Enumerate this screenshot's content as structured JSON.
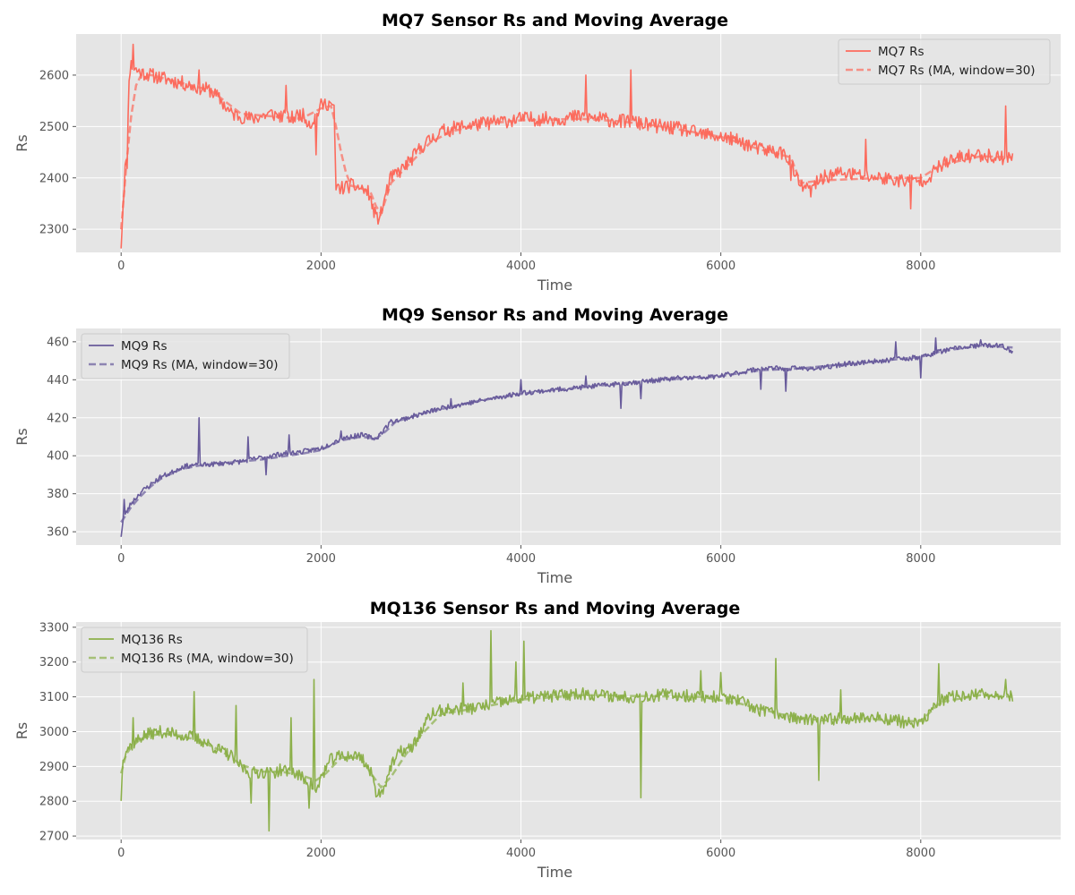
{
  "chart_data": [
    {
      "type": "line",
      "title": "MQ7 Sensor Rs and Moving Average",
      "xlabel": "Time",
      "ylabel": "Rs",
      "xlim": [
        -450,
        9400
      ],
      "ylim": [
        2255,
        2680
      ],
      "xticks": [
        0,
        2000,
        4000,
        6000,
        8000
      ],
      "yticks": [
        2300,
        2400,
        2500,
        2600
      ],
      "grid": true,
      "legend_position": "top-right",
      "color": "#fc6b5d",
      "noise": 14,
      "seed": 11,
      "spikes": [
        [
          120,
          2660
        ],
        [
          780,
          2610
        ],
        [
          1650,
          2580
        ],
        [
          1950,
          2445
        ],
        [
          4650,
          2600
        ],
        [
          5100,
          2610
        ],
        [
          6700,
          2395
        ],
        [
          7450,
          2475
        ],
        [
          7900,
          2340
        ],
        [
          8850,
          2540
        ]
      ],
      "series": [
        {
          "name": "MQ7 Rs",
          "style": "solid",
          "x": [
            0,
            20,
            40,
            60,
            80,
            100,
            150,
            200,
            300,
            400,
            500,
            600,
            700,
            800,
            900,
            1000,
            1100,
            1200,
            1300,
            1400,
            1500,
            1600,
            1700,
            1800,
            1900,
            2000,
            2050,
            2100,
            2130,
            2150,
            2200,
            2300,
            2400,
            2480,
            2520,
            2560,
            2600,
            2650,
            2700,
            2800,
            2900,
            3000,
            3100,
            3200,
            3300,
            3400,
            3600,
            3800,
            4000,
            4200,
            4400,
            4600,
            4800,
            5000,
            5100,
            5200,
            5400,
            5600,
            5800,
            6000,
            6200,
            6400,
            6600,
            6700,
            6750,
            6800,
            6900,
            7000,
            7200,
            7400,
            7600,
            7800,
            8000,
            8100,
            8200,
            8400,
            8600,
            8800,
            8920
          ],
          "y": [
            2270,
            2350,
            2420,
            2430,
            2600,
            2620,
            2610,
            2605,
            2600,
            2595,
            2590,
            2585,
            2580,
            2575,
            2570,
            2550,
            2525,
            2520,
            2515,
            2520,
            2525,
            2520,
            2515,
            2525,
            2505,
            2540,
            2545,
            2545,
            2530,
            2380,
            2380,
            2385,
            2380,
            2370,
            2340,
            2320,
            2330,
            2370,
            2400,
            2415,
            2435,
            2460,
            2475,
            2490,
            2495,
            2500,
            2505,
            2510,
            2515,
            2515,
            2515,
            2520,
            2515,
            2510,
            2510,
            2505,
            2500,
            2495,
            2485,
            2480,
            2470,
            2455,
            2450,
            2435,
            2400,
            2385,
            2375,
            2400,
            2410,
            2405,
            2400,
            2395,
            2395,
            2405,
            2425,
            2440,
            2445,
            2440,
            2440
          ]
        },
        {
          "name": "MQ7 Rs (MA, window=30)",
          "style": "dashed",
          "x": [
            0,
            50,
            100,
            150,
            200,
            300,
            500,
            700,
            900,
            1000,
            1200,
            1500,
            1800,
            2000,
            2100,
            2150,
            2200,
            2250,
            2300,
            2400,
            2500,
            2550,
            2600,
            2700,
            2900,
            3100,
            3300,
            3600,
            4000,
            4600,
            5000,
            5400,
            6000,
            6400,
            6700,
            6800,
            7000,
            7600,
            8000,
            8200,
            8600,
            8920
          ],
          "y": [
            2300,
            2420,
            2520,
            2580,
            2600,
            2600,
            2590,
            2580,
            2570,
            2555,
            2525,
            2520,
            2515,
            2535,
            2540,
            2500,
            2450,
            2410,
            2385,
            2380,
            2370,
            2345,
            2330,
            2390,
            2430,
            2470,
            2490,
            2505,
            2512,
            2515,
            2510,
            2500,
            2480,
            2455,
            2440,
            2390,
            2395,
            2400,
            2400,
            2425,
            2442,
            2440
          ]
        }
      ]
    },
    {
      "type": "line",
      "title": "MQ9 Sensor Rs and Moving Average",
      "xlabel": "Time",
      "ylabel": "Rs",
      "xlim": [
        -450,
        9400
      ],
      "ylim": [
        353,
        467
      ],
      "xticks": [
        0,
        2000,
        4000,
        6000,
        8000
      ],
      "yticks": [
        360,
        380,
        400,
        420,
        440,
        460
      ],
      "grid": true,
      "legend_position": "top-left",
      "color": "#685b9b",
      "noise": 1.3,
      "seed": 23,
      "spikes": [
        [
          25,
          377
        ],
        [
          780,
          420
        ],
        [
          1270,
          410
        ],
        [
          1680,
          411
        ],
        [
          1450,
          390
        ],
        [
          2200,
          413
        ],
        [
          3300,
          430
        ],
        [
          4000,
          440
        ],
        [
          4650,
          442
        ],
        [
          5000,
          425
        ],
        [
          5200,
          430
        ],
        [
          6400,
          435
        ],
        [
          6650,
          434
        ],
        [
          7750,
          460
        ],
        [
          8000,
          441
        ],
        [
          8150,
          462
        ],
        [
          8600,
          461
        ]
      ],
      "series": [
        {
          "name": "MQ9 Rs",
          "style": "solid",
          "x": [
            0,
            20,
            50,
            100,
            200,
            300,
            400,
            500,
            600,
            700,
            800,
            1000,
            1200,
            1400,
            1600,
            1800,
            2000,
            2200,
            2400,
            2550,
            2600,
            2700,
            2800,
            3000,
            3200,
            3400,
            3600,
            3800,
            4000,
            4200,
            4400,
            4600,
            4800,
            5000,
            5200,
            5400,
            5600,
            5800,
            6000,
            6200,
            6400,
            6600,
            6800,
            7000,
            7200,
            7400,
            7600,
            7800,
            8000,
            8200,
            8400,
            8600,
            8800,
            8920
          ],
          "y": [
            358,
            366,
            370,
            375,
            381,
            385,
            389,
            391,
            394,
            395,
            395,
            396,
            397,
            399,
            401,
            402,
            404,
            409,
            411,
            409,
            412,
            418,
            419,
            422,
            425,
            427,
            429,
            431,
            433,
            434,
            435,
            436,
            437,
            438,
            439,
            440,
            441,
            441,
            442,
            444,
            446,
            446,
            446,
            446,
            448,
            449,
            450,
            451,
            452,
            455,
            457,
            458,
            458,
            455
          ]
        },
        {
          "name": "MQ9 Rs (MA, window=30)",
          "style": "dashed",
          "x": [
            0,
            50,
            100,
            200,
            300,
            400,
            600,
            800,
            1000,
            1400,
            1800,
            2000,
            2200,
            2400,
            2550,
            2650,
            2750,
            3000,
            3400,
            3800,
            4200,
            4600,
            5000,
            5400,
            5800,
            6000,
            6400,
            6800,
            7200,
            7600,
            8000,
            8200,
            8600,
            8920
          ],
          "y": [
            365,
            369,
            373,
            379,
            384,
            388,
            393,
            395,
            396,
            398,
            401,
            403,
            408,
            410,
            409,
            413,
            418,
            422,
            427,
            431,
            434,
            436,
            438,
            440,
            441,
            442,
            445,
            446,
            448,
            450,
            452,
            455,
            458,
            457
          ]
        }
      ]
    },
    {
      "type": "line",
      "title": "MQ136 Sensor Rs and Moving Average",
      "xlabel": "Time",
      "ylabel": "Rs",
      "xlim": [
        -450,
        9400
      ],
      "ylim": [
        2690,
        3315
      ],
      "xticks": [
        0,
        2000,
        4000,
        6000,
        8000
      ],
      "yticks": [
        2700,
        2800,
        2900,
        3000,
        3100,
        3200,
        3300
      ],
      "grid": true,
      "legend_position": "top-left",
      "color": "#8cb04a",
      "noise": 18,
      "seed": 37,
      "spikes": [
        [
          120,
          3040
        ],
        [
          730,
          3115
        ],
        [
          1150,
          3075
        ],
        [
          1700,
          3040
        ],
        [
          1930,
          3150
        ],
        [
          1480,
          2715
        ],
        [
          1300,
          2795
        ],
        [
          1880,
          2780
        ],
        [
          3700,
          3290
        ],
        [
          3950,
          3200
        ],
        [
          4030,
          3260
        ],
        [
          3420,
          3140
        ],
        [
          5200,
          2810
        ],
        [
          5800,
          3175
        ],
        [
          6000,
          3170
        ],
        [
          6550,
          3210
        ],
        [
          6980,
          2860
        ],
        [
          7200,
          3120
        ],
        [
          8180,
          3195
        ],
        [
          8850,
          3150
        ]
      ],
      "series": [
        {
          "name": "MQ136 Rs",
          "style": "solid",
          "x": [
            0,
            20,
            50,
            100,
            200,
            300,
            400,
            500,
            600,
            700,
            800,
            900,
            1000,
            1100,
            1200,
            1300,
            1400,
            1500,
            1600,
            1700,
            1800,
            1900,
            1950,
            2000,
            2100,
            2200,
            2300,
            2400,
            2500,
            2550,
            2600,
            2700,
            2800,
            2900,
            3000,
            3100,
            3200,
            3400,
            3600,
            3800,
            4000,
            4200,
            4400,
            4600,
            4800,
            5000,
            5200,
            5400,
            5600,
            5800,
            6000,
            6200,
            6400,
            6600,
            6800,
            7000,
            7200,
            7400,
            7600,
            7800,
            8000,
            8100,
            8200,
            8400,
            8600,
            8800,
            8920
          ],
          "y": [
            2810,
            2930,
            2950,
            2960,
            2985,
            2995,
            3000,
            2995,
            2990,
            2985,
            2975,
            2960,
            2945,
            2930,
            2900,
            2880,
            2885,
            2880,
            2890,
            2885,
            2870,
            2850,
            2820,
            2870,
            2920,
            2930,
            2930,
            2930,
            2880,
            2830,
            2820,
            2900,
            2945,
            2950,
            3000,
            3050,
            3060,
            3065,
            3070,
            3085,
            3095,
            3100,
            3105,
            3110,
            3105,
            3100,
            3100,
            3105,
            3105,
            3100,
            3100,
            3085,
            3060,
            3050,
            3035,
            3030,
            3040,
            3040,
            3040,
            3030,
            3020,
            3060,
            3090,
            3105,
            3105,
            3110,
            3100
          ]
        },
        {
          "name": "MQ136 Rs (MA, window=30)",
          "style": "dashed",
          "x": [
            0,
            50,
            100,
            200,
            400,
            600,
            800,
            1000,
            1200,
            1400,
            1600,
            1800,
            1950,
            2050,
            2200,
            2400,
            2500,
            2600,
            2700,
            2850,
            3000,
            3200,
            3600,
            4000,
            4600,
            5200,
            5800,
            6200,
            6600,
            7000,
            7400,
            7800,
            8000,
            8200,
            8600,
            8920
          ],
          "y": [
            2880,
            2935,
            2955,
            2980,
            2995,
            2988,
            2972,
            2945,
            2905,
            2885,
            2885,
            2875,
            2860,
            2880,
            2925,
            2925,
            2880,
            2840,
            2870,
            2935,
            2990,
            3050,
            3070,
            3092,
            3105,
            3102,
            3100,
            3080,
            3050,
            3032,
            3038,
            3030,
            3030,
            3085,
            3105,
            3100
          ]
        }
      ]
    }
  ]
}
